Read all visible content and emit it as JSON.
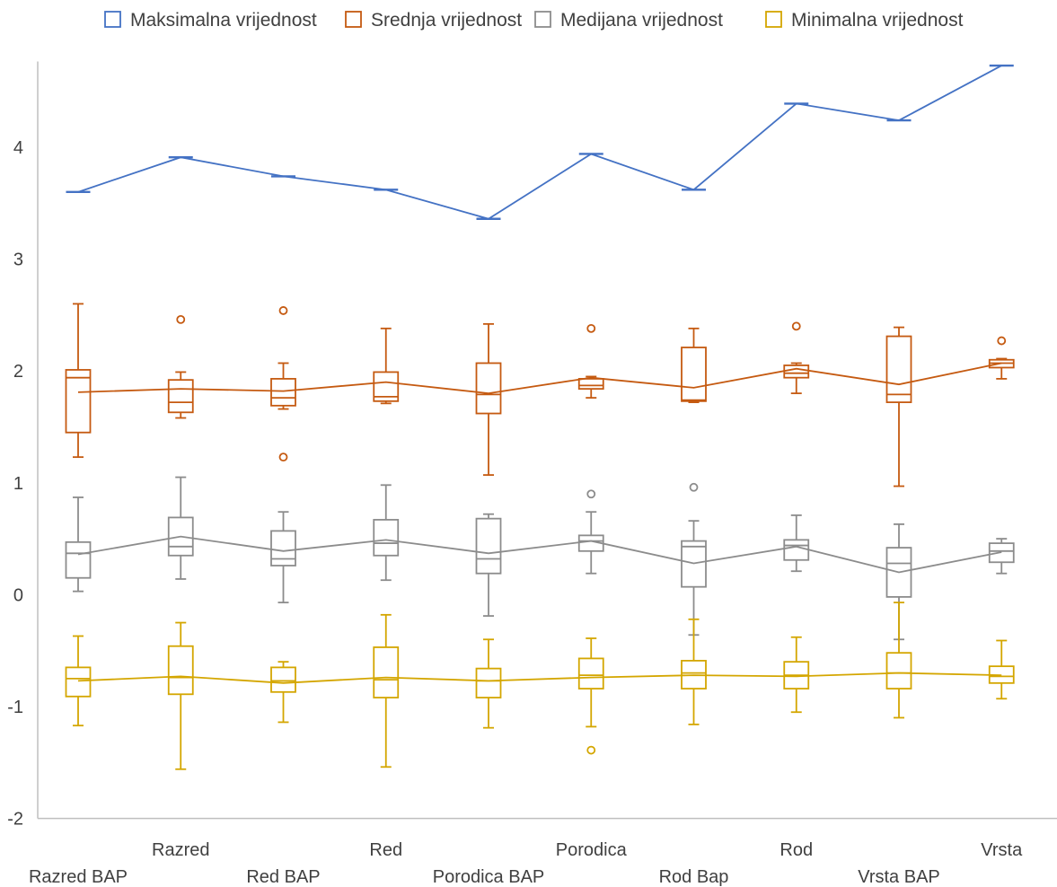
{
  "chart_data": {
    "type": "box",
    "categories": [
      "Razred BAP",
      "Razred",
      "Red BAP",
      "Red",
      "Porodica BAP",
      "Porodica",
      "Rod Bap",
      "Rod",
      "Vrsta BAP",
      "Vrsta"
    ],
    "yticks": [
      4,
      3,
      2,
      1,
      0,
      -1,
      -2
    ],
    "ylim": [
      -2,
      4.75
    ],
    "legend_position": "top",
    "gridlines": false,
    "series": [
      {
        "name": "Maksimalna vrijednost",
        "color": "#4472C4",
        "mean": [
          3.6,
          3.91,
          3.74,
          3.62,
          3.36,
          3.94,
          3.62,
          4.39,
          4.24,
          4.73
        ],
        "boxes": [
          {
            "min": 3.6,
            "q1": 3.6,
            "median": 3.6,
            "q3": 3.6,
            "max": 3.6,
            "outliers": []
          },
          {
            "min": 3.91,
            "q1": 3.91,
            "median": 3.91,
            "q3": 3.91,
            "max": 3.91,
            "outliers": []
          },
          {
            "min": 3.74,
            "q1": 3.74,
            "median": 3.74,
            "q3": 3.74,
            "max": 3.74,
            "outliers": []
          },
          {
            "min": 3.62,
            "q1": 3.62,
            "median": 3.62,
            "q3": 3.62,
            "max": 3.62,
            "outliers": []
          },
          {
            "min": 3.36,
            "q1": 3.36,
            "median": 3.36,
            "q3": 3.36,
            "max": 3.36,
            "outliers": []
          },
          {
            "min": 3.94,
            "q1": 3.94,
            "median": 3.94,
            "q3": 3.94,
            "max": 3.94,
            "outliers": []
          },
          {
            "min": 3.62,
            "q1": 3.62,
            "median": 3.62,
            "q3": 3.62,
            "max": 3.62,
            "outliers": []
          },
          {
            "min": 4.39,
            "q1": 4.39,
            "median": 4.39,
            "q3": 4.39,
            "max": 4.39,
            "outliers": []
          },
          {
            "min": 4.24,
            "q1": 4.24,
            "median": 4.24,
            "q3": 4.24,
            "max": 4.24,
            "outliers": []
          },
          {
            "min": 4.73,
            "q1": 4.73,
            "median": 4.73,
            "q3": 4.73,
            "max": 4.73,
            "outliers": []
          }
        ]
      },
      {
        "name": "Srednja vrijednost",
        "color": "#C55A11",
        "mean": [
          1.81,
          1.84,
          1.82,
          1.9,
          1.8,
          1.94,
          1.85,
          2.02,
          1.88,
          2.07
        ],
        "boxes": [
          {
            "min": 1.23,
            "q1": 1.45,
            "median": 1.94,
            "q3": 2.01,
            "max": 2.6,
            "outliers": []
          },
          {
            "min": 1.58,
            "q1": 1.63,
            "median": 1.72,
            "q3": 1.92,
            "max": 1.99,
            "outliers": [
              2.46
            ]
          },
          {
            "min": 1.66,
            "q1": 1.69,
            "median": 1.76,
            "q3": 1.93,
            "max": 2.07,
            "outliers": [
              2.54,
              1.23
            ]
          },
          {
            "min": 1.71,
            "q1": 1.73,
            "median": 1.77,
            "q3": 1.99,
            "max": 2.38,
            "outliers": []
          },
          {
            "min": 1.07,
            "q1": 1.62,
            "median": 1.79,
            "q3": 2.07,
            "max": 2.42,
            "outliers": []
          },
          {
            "min": 1.76,
            "q1": 1.84,
            "median": 1.87,
            "q3": 1.93,
            "max": 1.95,
            "outliers": [
              2.38
            ]
          },
          {
            "min": 1.72,
            "q1": 1.73,
            "median": 1.74,
            "q3": 2.21,
            "max": 2.38,
            "outliers": []
          },
          {
            "min": 1.8,
            "q1": 1.94,
            "median": 1.98,
            "q3": 2.05,
            "max": 2.07,
            "outliers": [
              2.4
            ]
          },
          {
            "min": 0.97,
            "q1": 1.72,
            "median": 1.79,
            "q3": 2.31,
            "max": 2.39,
            "outliers": []
          },
          {
            "min": 1.93,
            "q1": 2.03,
            "median": 2.07,
            "q3": 2.1,
            "max": 2.11,
            "outliers": [
              2.27
            ]
          }
        ]
      },
      {
        "name": "Medijana vrijednost",
        "color": "#8C8C8C",
        "mean": [
          0.36,
          0.52,
          0.39,
          0.49,
          0.37,
          0.48,
          0.28,
          0.43,
          0.2,
          0.38
        ],
        "boxes": [
          {
            "min": 0.03,
            "q1": 0.15,
            "median": 0.37,
            "q3": 0.47,
            "max": 0.87,
            "outliers": []
          },
          {
            "min": 0.14,
            "q1": 0.35,
            "median": 0.43,
            "q3": 0.69,
            "max": 1.05,
            "outliers": []
          },
          {
            "min": -0.07,
            "q1": 0.26,
            "median": 0.32,
            "q3": 0.57,
            "max": 0.74,
            "outliers": []
          },
          {
            "min": 0.13,
            "q1": 0.35,
            "median": 0.46,
            "q3": 0.67,
            "max": 0.98,
            "outliers": []
          },
          {
            "min": -0.19,
            "q1": 0.19,
            "median": 0.32,
            "q3": 0.68,
            "max": 0.72,
            "outliers": []
          },
          {
            "min": 0.19,
            "q1": 0.39,
            "median": 0.48,
            "q3": 0.53,
            "max": 0.74,
            "outliers": [
              0.9
            ]
          },
          {
            "min": -0.36,
            "q1": 0.07,
            "median": 0.43,
            "q3": 0.48,
            "max": 0.66,
            "outliers": [
              0.96
            ]
          },
          {
            "min": 0.21,
            "q1": 0.31,
            "median": 0.44,
            "q3": 0.49,
            "max": 0.71,
            "outliers": []
          },
          {
            "min": -0.4,
            "q1": -0.02,
            "median": 0.28,
            "q3": 0.42,
            "max": 0.63,
            "outliers": []
          },
          {
            "min": 0.19,
            "q1": 0.29,
            "median": 0.39,
            "q3": 0.46,
            "max": 0.5,
            "outliers": []
          }
        ]
      },
      {
        "name": "Minimalna vrijednost",
        "color": "#D4A600",
        "mean": [
          -0.77,
          -0.73,
          -0.79,
          -0.74,
          -0.77,
          -0.74,
          -0.72,
          -0.73,
          -0.7,
          -0.72
        ],
        "boxes": [
          {
            "min": -1.17,
            "q1": -0.91,
            "median": -0.75,
            "q3": -0.65,
            "max": -0.37,
            "outliers": []
          },
          {
            "min": -1.56,
            "q1": -0.89,
            "median": -0.74,
            "q3": -0.46,
            "max": -0.25,
            "outliers": []
          },
          {
            "min": -1.14,
            "q1": -0.87,
            "median": -0.77,
            "q3": -0.65,
            "max": -0.6,
            "outliers": []
          },
          {
            "min": -1.54,
            "q1": -0.92,
            "median": -0.76,
            "q3": -0.47,
            "max": -0.18,
            "outliers": []
          },
          {
            "min": -1.19,
            "q1": -0.92,
            "median": -0.77,
            "q3": -0.66,
            "max": -0.4,
            "outliers": []
          },
          {
            "min": -1.18,
            "q1": -0.84,
            "median": -0.72,
            "q3": -0.57,
            "max": -0.39,
            "outliers": [
              -1.39
            ]
          },
          {
            "min": -1.16,
            "q1": -0.84,
            "median": -0.7,
            "q3": -0.59,
            "max": -0.22,
            "outliers": []
          },
          {
            "min": -1.05,
            "q1": -0.84,
            "median": -0.72,
            "q3": -0.6,
            "max": -0.38,
            "outliers": []
          },
          {
            "min": -1.1,
            "q1": -0.84,
            "median": -0.7,
            "q3": -0.52,
            "max": -0.07,
            "outliers": []
          },
          {
            "min": -0.93,
            "q1": -0.79,
            "median": -0.73,
            "q3": -0.64,
            "max": -0.41,
            "outliers": []
          }
        ]
      }
    ]
  }
}
